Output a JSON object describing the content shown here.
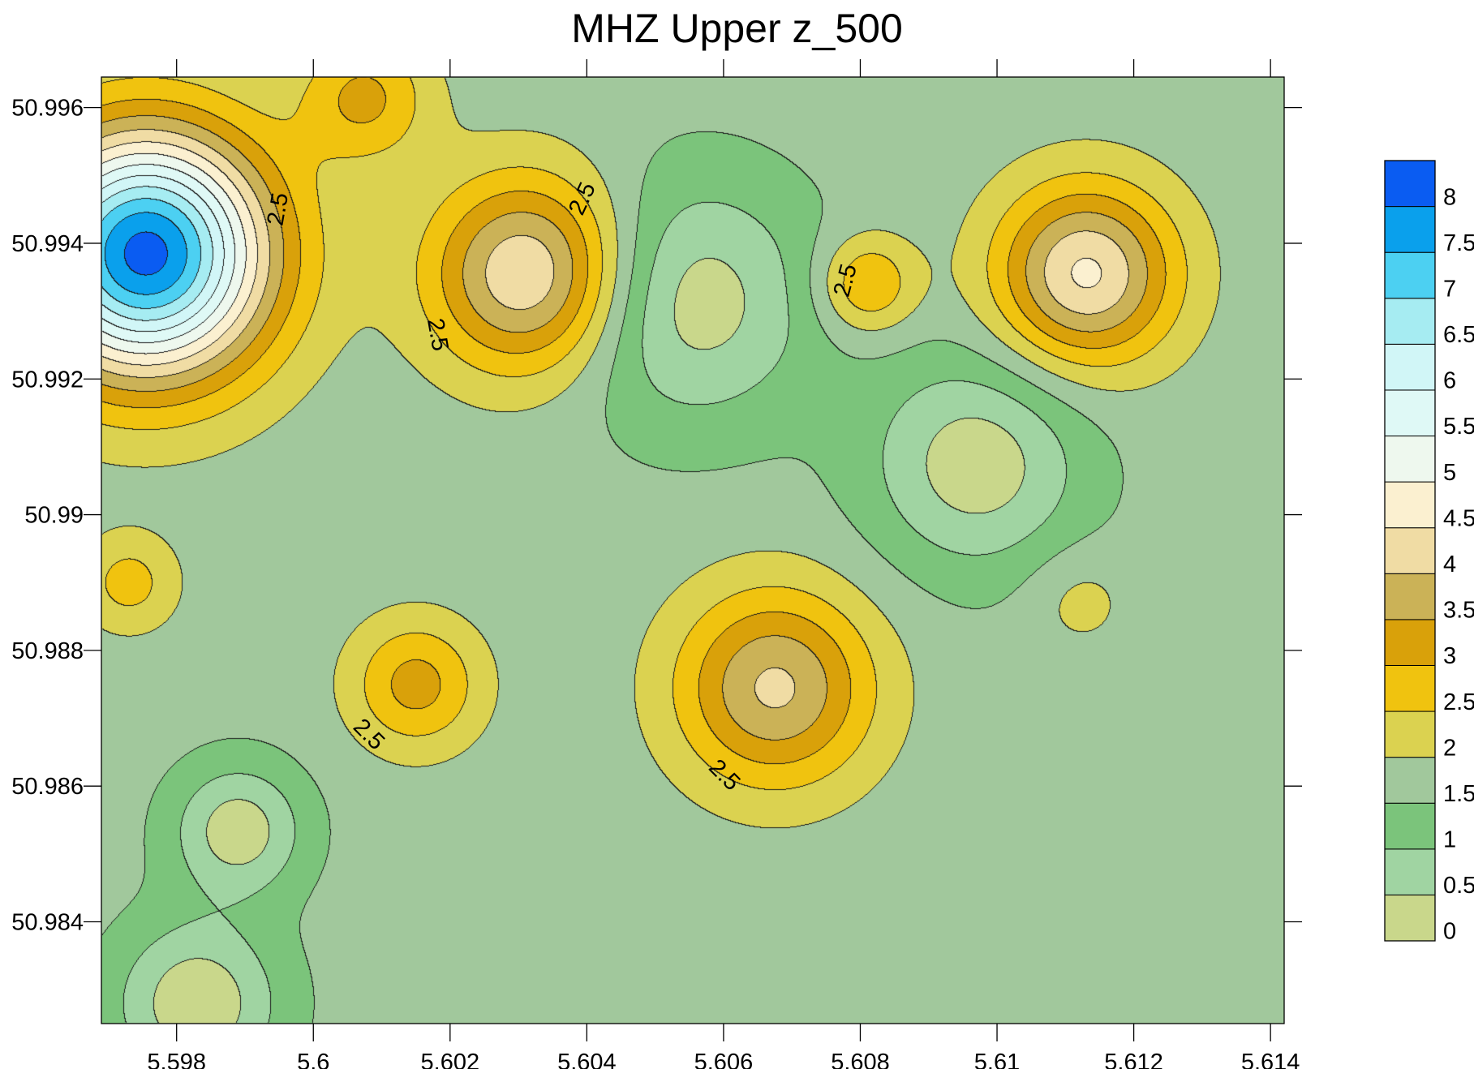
{
  "chart_data": {
    "type": "contour",
    "title": "MHZ Upper z_500",
    "xlabel": "",
    "ylabel": "",
    "xlim": [
      5.5969,
      5.6142
    ],
    "ylim": [
      50.9825,
      50.99645
    ],
    "x_ticks": [
      {
        "value": 5.598,
        "label": "5.598"
      },
      {
        "value": 5.6,
        "label": "5.6"
      },
      {
        "value": 5.602,
        "label": "5.602"
      },
      {
        "value": 5.604,
        "label": "5.604"
      },
      {
        "value": 5.606,
        "label": "5.606"
      },
      {
        "value": 5.608,
        "label": "5.608"
      },
      {
        "value": 5.61,
        "label": "5.61"
      },
      {
        "value": 5.612,
        "label": "5.612"
      },
      {
        "value": 5.614,
        "label": "5.614"
      }
    ],
    "y_ticks": [
      {
        "value": 50.996,
        "label": "50.996"
      },
      {
        "value": 50.994,
        "label": "50.994"
      },
      {
        "value": 50.992,
        "label": "50.992"
      },
      {
        "value": 50.99,
        "label": "50.99"
      },
      {
        "value": 50.988,
        "label": "50.988"
      },
      {
        "value": 50.986,
        "label": "50.986"
      },
      {
        "value": 50.984,
        "label": "50.984"
      }
    ],
    "levels": [
      {
        "value": 0,
        "label": "0",
        "color": "#c9d78b"
      },
      {
        "value": 0.5,
        "label": "0.5",
        "color": "#a0d4a2"
      },
      {
        "value": 1,
        "label": "1",
        "color": "#7bc47b"
      },
      {
        "value": 1.5,
        "label": "1.5",
        "color": "#a1c89c"
      },
      {
        "value": 2,
        "label": "2",
        "color": "#dbd250"
      },
      {
        "value": 2.5,
        "label": "2.5",
        "color": "#f0c30f"
      },
      {
        "value": 3,
        "label": "3",
        "color": "#d9a10a"
      },
      {
        "value": 3.5,
        "label": "3.5",
        "color": "#cbb257"
      },
      {
        "value": 4,
        "label": "4",
        "color": "#f0dca4"
      },
      {
        "value": 4.5,
        "label": "4.5",
        "color": "#fbf0d0"
      },
      {
        "value": 5,
        "label": "5",
        "color": "#eef8ee"
      },
      {
        "value": 5.5,
        "label": "5.5",
        "color": "#dff9f6"
      },
      {
        "value": 6,
        "label": "6",
        "color": "#d1f6f7"
      },
      {
        "value": 6.5,
        "label": "6.5",
        "color": "#a6ecf2"
      },
      {
        "value": 7,
        "label": "7",
        "color": "#4cd0f2"
      },
      {
        "value": 7.5,
        "label": "7.5",
        "color": "#0aa0ec"
      },
      {
        "value": 8,
        "label": "8",
        "color": "#0a5cf2"
      }
    ],
    "peaks": [
      {
        "x": 5.59755,
        "y": 50.99385,
        "value": 8.2
      },
      {
        "x": 5.60315,
        "y": 50.99355,
        "value": 4.6
      },
      {
        "x": 5.60675,
        "y": 50.98745,
        "value": 4.1
      },
      {
        "x": 5.6113,
        "y": 50.99355,
        "value": 4.6
      },
      {
        "x": 5.6015,
        "y": 50.9875,
        "value": 3.2
      },
      {
        "x": 5.60075,
        "y": 50.99615,
        "value": 3.1
      },
      {
        "x": 5.6081,
        "y": 50.9934,
        "value": 3.1
      },
      {
        "x": 5.6112,
        "y": 50.98875,
        "value": 2.2
      },
      {
        "x": 5.5973,
        "y": 50.989,
        "value": 2.7
      }
    ],
    "lows": [
      {
        "x": 5.6055,
        "y": 50.99315,
        "value": 0.2
      },
      {
        "x": 5.6097,
        "y": 50.99075,
        "value": 0.2
      },
      {
        "x": 5.5989,
        "y": 50.98535,
        "value": 0.2
      },
      {
        "x": 5.5983,
        "y": 50.9828,
        "value": 0.1
      }
    ],
    "contour_labels": [
      {
        "text": "2.5",
        "x": 5.5995,
        "y": 50.9945,
        "angle": -80
      },
      {
        "text": "2.5",
        "x": 5.6018,
        "y": 50.99265,
        "angle": 80
      },
      {
        "text": "2.5",
        "x": 5.60395,
        "y": 50.99465,
        "angle": -65
      },
      {
        "text": "2.5",
        "x": 5.6078,
        "y": 50.99345,
        "angle": -75
      },
      {
        "text": "2.5",
        "x": 5.6008,
        "y": 50.98675,
        "angle": 45
      },
      {
        "text": "2.5",
        "x": 5.606,
        "y": 50.98615,
        "angle": 45
      }
    ],
    "legend": "colorbar-right",
    "grid": false
  }
}
